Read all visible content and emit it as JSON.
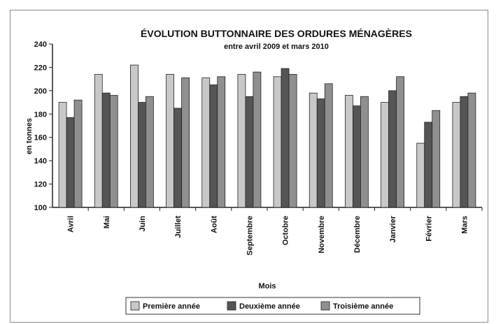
{
  "chart_data": {
    "type": "bar",
    "title": "ÉVOLUTION BUTTONNAIRE DES ORDURES MÉNAGÈRES",
    "subtitle": "entre avril 2009 et mars 2010",
    "xlabel": "Mois",
    "ylabel": "en tonnes",
    "ylim": [
      100,
      240
    ],
    "yticks": [
      100,
      120,
      140,
      160,
      180,
      200,
      220,
      240
    ],
    "grid": false,
    "legend_position": "bottom",
    "categories": [
      "Avril",
      "Mai",
      "Juin",
      "Juillet",
      "Août",
      "Septembre",
      "Octobre",
      "Novembre",
      "Décembre",
      "Janvier",
      "Février",
      "Mars"
    ],
    "series": [
      {
        "name": "Première année",
        "color": "#c8c8c8",
        "values": [
          190,
          214,
          222,
          214,
          211,
          214,
          212,
          198,
          196,
          190,
          155,
          190
        ]
      },
      {
        "name": "Deuxième année",
        "color": "#555555",
        "values": [
          177,
          198,
          190,
          185,
          205,
          195,
          219,
          193,
          187,
          200,
          173,
          195
        ]
      },
      {
        "name": "Troisième année",
        "color": "#8f8f8f",
        "values": [
          192,
          196,
          195,
          211,
          212,
          216,
          214,
          206,
          195,
          212,
          183,
          198
        ]
      }
    ]
  }
}
